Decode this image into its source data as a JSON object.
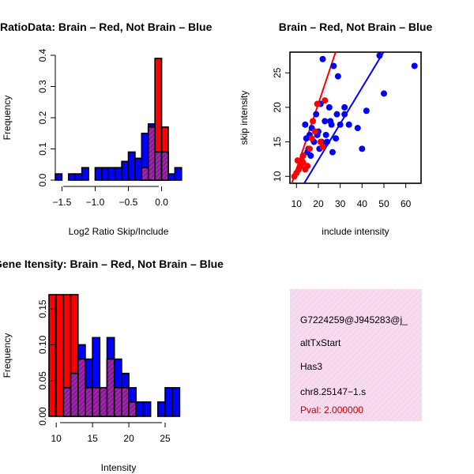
{
  "colors": {
    "red": "#ff0000",
    "blue": "#0000ff",
    "overlap": "#8b1a9b",
    "hatch": "#c040c0",
    "info_bg": "#f7dcef",
    "info_hatch": "#f2c6e4",
    "pval": "#c00000"
  },
  "chart_data": [
    {
      "id": "ratio-hist",
      "type": "bar",
      "title": "RatioData: Brain – Red, Not Brain – Blue",
      "xlabel": "Log2 Ratio Skip/Include",
      "ylabel": "Frequency",
      "xlim": [
        -1.6,
        0.35
      ],
      "ylim": [
        0,
        0.4
      ],
      "xticks": [
        -1.5,
        -1.0,
        -0.5,
        0.0
      ],
      "xtick_labels": [
        "−1.5",
        "−1.0",
        "−0.5",
        "0.0"
      ],
      "yticks": [
        0.0,
        0.1,
        0.2,
        0.3,
        0.4
      ],
      "ytick_labels": [
        "0.0",
        "0.1",
        "0.2",
        "0.3",
        "0.4"
      ],
      "bin_width": 0.1,
      "bin_starts": [
        -1.6,
        -1.5,
        -1.4,
        -1.3,
        -1.2,
        -1.1,
        -1.0,
        -0.9,
        -0.8,
        -0.7,
        -0.6,
        -0.5,
        -0.4,
        -0.3,
        -0.2,
        -0.1,
        0.0,
        0.1,
        0.2
      ],
      "series": [
        {
          "name": "Brain",
          "color": "red",
          "values": [
            0,
            0,
            0,
            0,
            0,
            0,
            0,
            0,
            0,
            0,
            0,
            0,
            0,
            0.04,
            0.17,
            0.39,
            0.17,
            0,
            0
          ]
        },
        {
          "name": "Not Brain",
          "color": "blue",
          "values": [
            0.02,
            0,
            0.02,
            0.02,
            0.04,
            0,
            0.04,
            0.04,
            0.04,
            0.04,
            0.06,
            0.09,
            0.07,
            0.15,
            0.18,
            0.09,
            0.09,
            0.02,
            0.04
          ]
        }
      ]
    },
    {
      "id": "intensity-scatter",
      "type": "scatter",
      "title": "Brain – Red, Not Brain – Blue",
      "xlabel": "include intensity",
      "ylabel": "skip intensity",
      "xlim": [
        7,
        67
      ],
      "ylim": [
        9,
        28
      ],
      "xticks": [
        10,
        20,
        30,
        40,
        50,
        60
      ],
      "xtick_labels": [
        "10",
        "20",
        "30",
        "40",
        "50",
        "60"
      ],
      "yticks": [
        10,
        15,
        20,
        25
      ],
      "ytick_labels": [
        "10",
        "15",
        "20",
        "25"
      ],
      "series": [
        {
          "name": "Brain",
          "color": "red",
          "points": [
            [
              9,
              10
            ],
            [
              10,
              10.5
            ],
            [
              10.5,
              12.3
            ],
            [
              11,
              11
            ],
            [
              12,
              11.5
            ],
            [
              12.5,
              12.3
            ],
            [
              13,
              12
            ],
            [
              14,
              11
            ],
            [
              15,
              11.5
            ],
            [
              16,
              14
            ],
            [
              17,
              15.5
            ],
            [
              17.5,
              18
            ],
            [
              18.5,
              16.5
            ],
            [
              19.5,
              20.5
            ],
            [
              21,
              15
            ],
            [
              22,
              14.3
            ],
            [
              23,
              21
            ],
            [
              13,
              13
            ]
          ],
          "fit": [
            [
              7,
              8.2
            ],
            [
              30,
              30
            ]
          ]
        },
        {
          "name": "Not Brain",
          "color": "blue",
          "points": [
            [
              13,
              13
            ],
            [
              14,
              17.5
            ],
            [
              14.5,
              15.5
            ],
            [
              15,
              13.5
            ],
            [
              15.5,
              14
            ],
            [
              16,
              16
            ],
            [
              16.5,
              13
            ],
            [
              17,
              17
            ],
            [
              18,
              15
            ],
            [
              19,
              19
            ],
            [
              19.5,
              16
            ],
            [
              20,
              16.5
            ],
            [
              20.5,
              14
            ],
            [
              21,
              20.5
            ],
            [
              21.5,
              15
            ],
            [
              22,
              27
            ],
            [
              22.5,
              14.5
            ],
            [
              23,
              18
            ],
            [
              23.5,
              16
            ],
            [
              24,
              15
            ],
            [
              25,
              20
            ],
            [
              25.5,
              18
            ],
            [
              26,
              17.5
            ],
            [
              26.5,
              13.5
            ],
            [
              27,
              26
            ],
            [
              28,
              15.5
            ],
            [
              28.5,
              19
            ],
            [
              29,
              24.5
            ],
            [
              30,
              17.5
            ],
            [
              32,
              20
            ],
            [
              32,
              19
            ],
            [
              34,
              17.5
            ],
            [
              38,
              17
            ],
            [
              40,
              14
            ],
            [
              42,
              19.5
            ],
            [
              48,
              27.5
            ],
            [
              50,
              22
            ],
            [
              64,
              26
            ]
          ],
          "fit": [
            [
              12,
              8.2
            ],
            [
              67,
              37
            ]
          ]
        }
      ]
    },
    {
      "id": "intensity-hist",
      "type": "bar",
      "title": "Gene Itensity: Brain – Red, Not Brain – Blue",
      "xlabel": "Intensity",
      "ylabel": "Frequency",
      "xlim": [
        9,
        27.5
      ],
      "ylim": [
        0,
        0.17
      ],
      "xticks": [
        10,
        15,
        20,
        25
      ],
      "xtick_labels": [
        "10",
        "15",
        "20",
        "25"
      ],
      "yticks": [
        0.0,
        0.05,
        0.1,
        0.15
      ],
      "ytick_labels": [
        "0.00",
        "0.05",
        "0.10",
        "0.15"
      ],
      "bin_width": 1,
      "bin_starts": [
        9,
        10,
        11,
        12,
        13,
        14,
        15,
        16,
        17,
        18,
        19,
        20,
        21,
        22,
        23,
        24,
        25,
        26
      ],
      "series": [
        {
          "name": "Brain",
          "color": "red",
          "values": [
            0.17,
            0.17,
            0.17,
            0.17,
            0.08,
            0.04,
            0.04,
            0.04,
            0.08,
            0.04,
            0.04,
            0.02,
            0,
            0,
            0,
            0,
            0,
            0
          ]
        },
        {
          "name": "Not Brain",
          "color": "blue",
          "values": [
            0,
            0,
            0.04,
            0.06,
            0.1,
            0.08,
            0.11,
            0.04,
            0.11,
            0.08,
            0.06,
            0.04,
            0.02,
            0.02,
            0,
            0.02,
            0.04,
            0.04
          ]
        }
      ]
    }
  ],
  "info_panel": {
    "id": "G7224259@J945283@j_",
    "event_type": "altTxStart",
    "gene": "Has3",
    "location": "chr8.25147−1.s",
    "pval": "Pval: 2.000000"
  }
}
